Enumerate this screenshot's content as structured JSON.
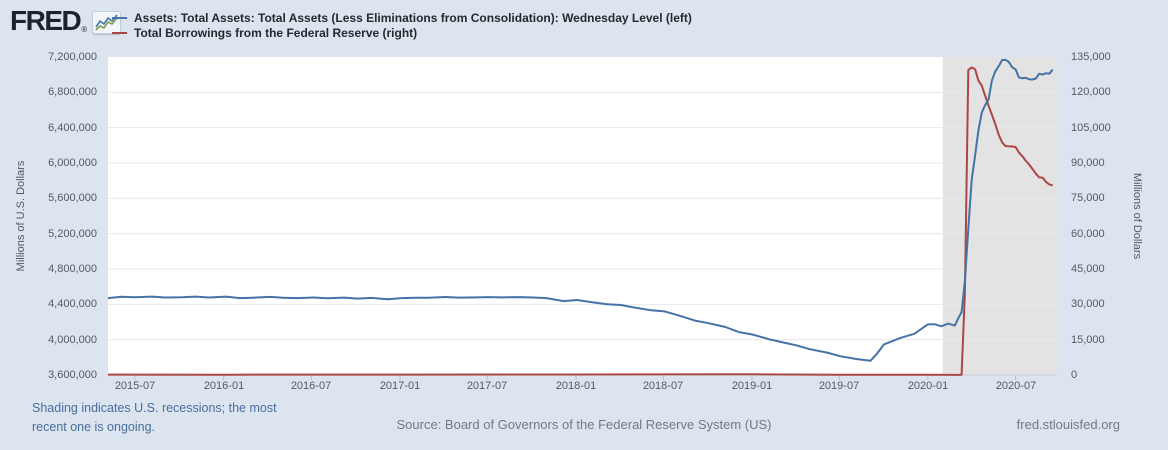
{
  "header": {
    "logo": "FRED",
    "logo_registered": "®"
  },
  "legend": [
    {
      "label": "Assets: Total Assets: Total Assets (Less Eliminations from Consolidation): Wednesday Level (left)",
      "color": "#4572a7"
    },
    {
      "label": "Total Borrowings from the Federal Reserve (right)",
      "color": "#aa4643"
    }
  ],
  "footer": {
    "note_line1": "Shading indicates U.S. recessions; the most",
    "note_line2": "recent one is ongoing.",
    "source": "Source: Board of Governors of the Federal Reserve System (US)",
    "site": "fred.stlouisfed.org"
  },
  "colors": {
    "background": "#dce5ef",
    "plot_background": "#ffffff",
    "recession_shading": "#e3e3e3",
    "gridline": "#e8e8e8",
    "axis_line": "#c9d2dc",
    "tick_mark": "#b6c0cb",
    "assets_line": "#4572a7",
    "borrowings_line": "#aa4643",
    "note_link": "#4a6d9e"
  },
  "chart_data": {
    "type": "line",
    "title": "",
    "grid": "horizontal-only",
    "legend_position": "top-left",
    "y_left": {
      "label": "Millions of U.S. Dollars",
      "min": 3600000,
      "max": 7200000,
      "ticks": [
        "7,200,000",
        "6,800,000",
        "6,400,000",
        "6,000,000",
        "5,600,000",
        "5,200,000",
        "4,800,000",
        "4,400,000",
        "4,000,000",
        "3,600,000"
      ]
    },
    "y_right": {
      "label": "Millions of Dollars",
      "min": 0,
      "max": 135000,
      "ticks": [
        "135,000",
        "120,000",
        "105,000",
        "90,000",
        "75,000",
        "60,000",
        "45,000",
        "30,000",
        "15,000",
        "0"
      ]
    },
    "x": {
      "start": "2015-05-06",
      "end": "2020-09-25",
      "ticks": [
        "2015-07",
        "2016-01",
        "2016-07",
        "2017-01",
        "2017-07",
        "2018-01",
        "2018-07",
        "2019-01",
        "2019-07",
        "2020-01",
        "2020-07"
      ]
    },
    "recession_band": {
      "start": "2020-02-01",
      "end": "2020-09-25",
      "ongoing": true
    },
    "series": [
      {
        "name": "Assets: Total Assets: Total Assets (Less Eliminations from Consolidation): Wednesday Level (left)",
        "axis": "left",
        "color": "#4572a7",
        "points": [
          [
            "2015-05-06",
            4471000
          ],
          [
            "2015-06-03",
            4486000
          ],
          [
            "2015-07-01",
            4480000
          ],
          [
            "2015-08-05",
            4488000
          ],
          [
            "2015-09-02",
            4477000
          ],
          [
            "2015-10-07",
            4481000
          ],
          [
            "2015-11-04",
            4487000
          ],
          [
            "2015-12-02",
            4477000
          ],
          [
            "2016-01-06",
            4487000
          ],
          [
            "2016-02-03",
            4470000
          ],
          [
            "2016-03-02",
            4475000
          ],
          [
            "2016-04-06",
            4484000
          ],
          [
            "2016-05-04",
            4475000
          ],
          [
            "2016-06-01",
            4471000
          ],
          [
            "2016-07-06",
            4477000
          ],
          [
            "2016-08-03",
            4468000
          ],
          [
            "2016-09-07",
            4476000
          ],
          [
            "2016-10-05",
            4465000
          ],
          [
            "2016-11-02",
            4473000
          ],
          [
            "2016-12-07",
            4457000
          ],
          [
            "2017-01-04",
            4471000
          ],
          [
            "2017-02-01",
            4475000
          ],
          [
            "2017-03-01",
            4475000
          ],
          [
            "2017-04-05",
            4483000
          ],
          [
            "2017-05-03",
            4476000
          ],
          [
            "2017-06-07",
            4479000
          ],
          [
            "2017-07-05",
            4482000
          ],
          [
            "2017-08-02",
            4479000
          ],
          [
            "2017-09-06",
            4482000
          ],
          [
            "2017-10-04",
            4477000
          ],
          [
            "2017-11-01",
            4470000
          ],
          [
            "2017-12-06",
            4437000
          ],
          [
            "2018-01-03",
            4449000
          ],
          [
            "2018-02-07",
            4421000
          ],
          [
            "2018-03-07",
            4400000
          ],
          [
            "2018-04-04",
            4393000
          ],
          [
            "2018-05-02",
            4364000
          ],
          [
            "2018-06-06",
            4332000
          ],
          [
            "2018-07-04",
            4320000
          ],
          [
            "2018-08-01",
            4276000
          ],
          [
            "2018-09-05",
            4216000
          ],
          [
            "2018-10-03",
            4186000
          ],
          [
            "2018-11-07",
            4143000
          ],
          [
            "2018-12-05",
            4086000
          ],
          [
            "2019-01-02",
            4058000
          ],
          [
            "2019-02-06",
            4004000
          ],
          [
            "2019-03-06",
            3969000
          ],
          [
            "2019-04-03",
            3936000
          ],
          [
            "2019-05-01",
            3892000
          ],
          [
            "2019-06-05",
            3855000
          ],
          [
            "2019-07-03",
            3813000
          ],
          [
            "2019-08-07",
            3780000
          ],
          [
            "2019-09-04",
            3761000
          ],
          [
            "2019-09-18",
            3845000
          ],
          [
            "2019-10-02",
            3946000
          ],
          [
            "2019-11-06",
            4021000
          ],
          [
            "2019-12-04",
            4066000
          ],
          [
            "2020-01-01",
            4173000
          ],
          [
            "2020-01-15",
            4175000
          ],
          [
            "2020-01-29",
            4151000
          ],
          [
            "2020-02-12",
            4182000
          ],
          [
            "2020-02-26",
            4159000
          ],
          [
            "2020-03-04",
            4242000
          ],
          [
            "2020-03-11",
            4312000
          ],
          [
            "2020-03-18",
            4668000
          ],
          [
            "2020-03-25",
            5254000
          ],
          [
            "2020-04-01",
            5812000
          ],
          [
            "2020-04-08",
            6083000
          ],
          [
            "2020-04-15",
            6368000
          ],
          [
            "2020-04-22",
            6573000
          ],
          [
            "2020-04-29",
            6656000
          ],
          [
            "2020-05-06",
            6721000
          ],
          [
            "2020-05-13",
            6934000
          ],
          [
            "2020-05-20",
            7037000
          ],
          [
            "2020-05-27",
            7097000
          ],
          [
            "2020-06-03",
            7165000
          ],
          [
            "2020-06-10",
            7169000
          ],
          [
            "2020-06-17",
            7144000
          ],
          [
            "2020-06-24",
            7083000
          ],
          [
            "2020-07-01",
            7060000
          ],
          [
            "2020-07-08",
            6969000
          ],
          [
            "2020-07-15",
            6959000
          ],
          [
            "2020-07-22",
            6965000
          ],
          [
            "2020-07-29",
            6949000
          ],
          [
            "2020-08-05",
            6945000
          ],
          [
            "2020-08-12",
            6957000
          ],
          [
            "2020-08-19",
            7011000
          ],
          [
            "2020-08-26",
            7001000
          ],
          [
            "2020-09-02",
            7017000
          ],
          [
            "2020-09-09",
            7011000
          ],
          [
            "2020-09-16",
            7057000
          ]
        ]
      },
      {
        "name": "Total Borrowings from the Federal Reserve (right)",
        "axis": "right",
        "color": "#aa4643",
        "points": [
          [
            "2015-05-06",
            150
          ],
          [
            "2016-01-06",
            140
          ],
          [
            "2017-01-04",
            180
          ],
          [
            "2018-01-03",
            220
          ],
          [
            "2019-01-02",
            300
          ],
          [
            "2019-07-03",
            120
          ],
          [
            "2020-01-01",
            90
          ],
          [
            "2020-03-04",
            60
          ],
          [
            "2020-03-11",
            110
          ],
          [
            "2020-03-18",
            35000
          ],
          [
            "2020-03-25",
            129500
          ],
          [
            "2020-04-01",
            130600
          ],
          [
            "2020-04-08",
            129800
          ],
          [
            "2020-04-15",
            125000
          ],
          [
            "2020-04-22",
            122800
          ],
          [
            "2020-04-29",
            118500
          ],
          [
            "2020-05-06",
            114300
          ],
          [
            "2020-05-13",
            110500
          ],
          [
            "2020-05-20",
            106500
          ],
          [
            "2020-05-27",
            102000
          ],
          [
            "2020-06-03",
            98800
          ],
          [
            "2020-06-10",
            97200
          ],
          [
            "2020-06-17",
            97100
          ],
          [
            "2020-06-24",
            97000
          ],
          [
            "2020-07-01",
            96800
          ],
          [
            "2020-07-08",
            94500
          ],
          [
            "2020-07-15",
            92900
          ],
          [
            "2020-07-22",
            91000
          ],
          [
            "2020-07-29",
            89400
          ],
          [
            "2020-08-05",
            87500
          ],
          [
            "2020-08-12",
            85500
          ],
          [
            "2020-08-19",
            83900
          ],
          [
            "2020-08-26",
            83800
          ],
          [
            "2020-09-02",
            82000
          ],
          [
            "2020-09-09",
            80900
          ],
          [
            "2020-09-16",
            80500
          ]
        ]
      }
    ]
  }
}
